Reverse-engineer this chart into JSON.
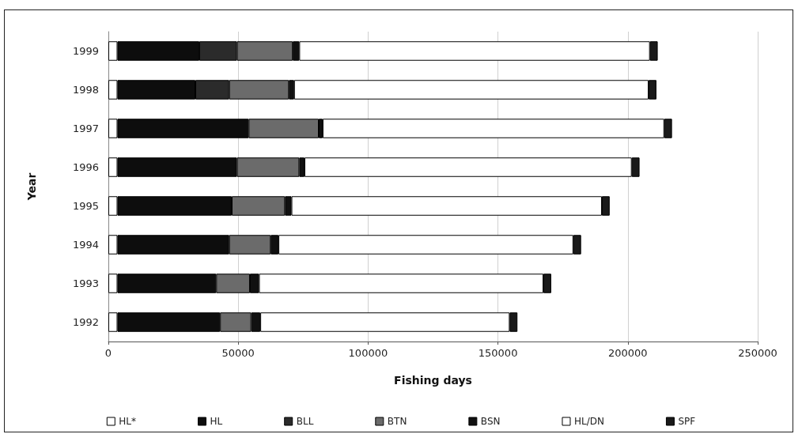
{
  "chart_data": {
    "type": "bar",
    "orientation": "horizontal",
    "stacked": true,
    "xlabel": "Fishing days",
    "ylabel": "Year",
    "categories": [
      "1999",
      "1998",
      "1997",
      "1996",
      "1995",
      "1994",
      "1993",
      "1992"
    ],
    "series": [
      {
        "name": "HL*",
        "color": "#ffffff",
        "values": [
          3500,
          3500,
          3500,
          3500,
          3500,
          3500,
          3500,
          3500
        ]
      },
      {
        "name": "HL",
        "color": "#0d0d0d",
        "values": [
          31500,
          30000,
          50500,
          46000,
          44000,
          43000,
          38000,
          39500
        ]
      },
      {
        "name": "BLL",
        "color": "#2b2b2b",
        "values": [
          14500,
          13000,
          null,
          null,
          null,
          null,
          null,
          null
        ]
      },
      {
        "name": "BTN",
        "color": "#6b6b6b",
        "values": [
          21500,
          23000,
          27000,
          24000,
          20500,
          16000,
          13000,
          12000
        ]
      },
      {
        "name": "BSN",
        "color": "#111111",
        "values": [
          2500,
          2000,
          1500,
          2000,
          2500,
          3000,
          3500,
          3500
        ]
      },
      {
        "name": "HL/DN",
        "color": "#ffffff",
        "values": [
          135000,
          136500,
          131500,
          126000,
          119500,
          113500,
          109500,
          96000
        ]
      },
      {
        "name": "SPF",
        "color": "#1a1a1a",
        "values": [
          3000,
          3000,
          3000,
          3000,
          3000,
          3000,
          3000,
          3000
        ]
      }
    ],
    "xlim": [
      0,
      250000
    ],
    "xticks": [
      0,
      50000,
      100000,
      150000,
      200000,
      250000
    ],
    "grid": "x",
    "legend": "bottom"
  }
}
